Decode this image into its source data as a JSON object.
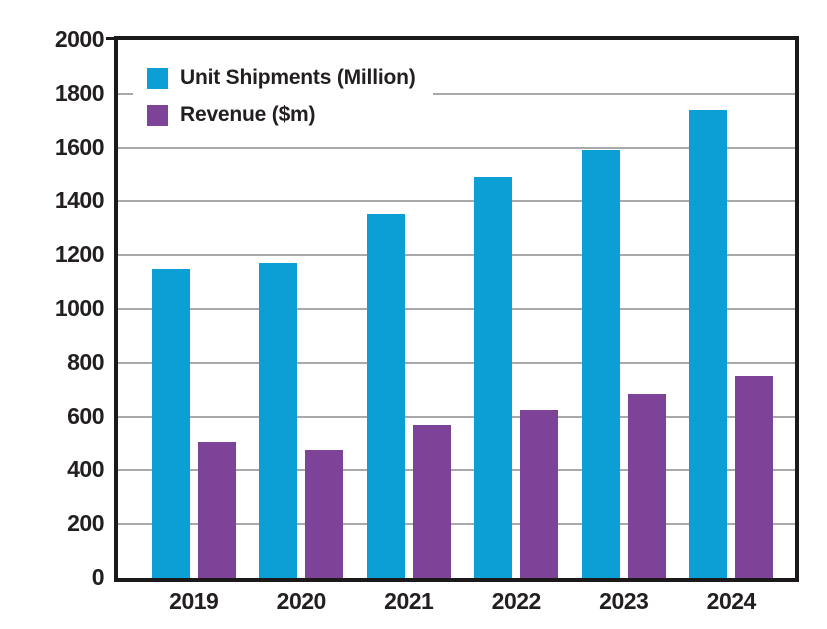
{
  "chart_data": {
    "type": "bar",
    "title": "",
    "xlabel": "",
    "ylabel": "",
    "categories": [
      "2019",
      "2020",
      "2021",
      "2022",
      "2023",
      "2024"
    ],
    "series": [
      {
        "name": "Unit Shipments (Million)",
        "color": "#0c9fd6",
        "values": [
          1150,
          1170,
          1355,
          1490,
          1590,
          1740
        ]
      },
      {
        "name": "Revenue ($m)",
        "color": "#7c4399",
        "values": [
          505,
          475,
          570,
          625,
          685,
          750
        ]
      }
    ],
    "ylim": [
      0,
      2000
    ],
    "ytick_step": 200,
    "yticks": [
      0,
      200,
      400,
      600,
      800,
      1000,
      1200,
      1400,
      1600,
      1800,
      2000
    ],
    "grid": "horizontal",
    "legend_position": "top-left-inside",
    "colors": {
      "text": "#231f20",
      "gridline": "#a9a9ab",
      "frame": "#1b191a",
      "background": "#ffffff"
    }
  }
}
